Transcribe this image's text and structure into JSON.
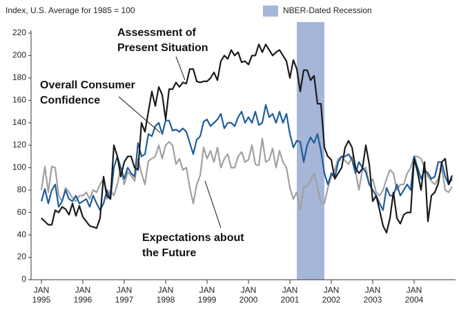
{
  "chart_data": {
    "type": "line",
    "ylabel": "Index, U.S. Average for 1985 = 100",
    "recession": {
      "label": "NBER-Dated Recession",
      "start": "2001-03",
      "end": "2001-11",
      "color": "#a6b6d9"
    },
    "x": [
      "1995-01",
      "1995-02",
      "1995-03",
      "1995-04",
      "1995-05",
      "1995-06",
      "1995-07",
      "1995-08",
      "1995-09",
      "1995-10",
      "1995-11",
      "1995-12",
      "1996-01",
      "1996-02",
      "1996-03",
      "1996-04",
      "1996-05",
      "1996-06",
      "1996-07",
      "1996-08",
      "1996-09",
      "1996-10",
      "1996-11",
      "1996-12",
      "1997-01",
      "1997-02",
      "1997-03",
      "1997-04",
      "1997-05",
      "1997-06",
      "1997-07",
      "1997-08",
      "1997-09",
      "1997-10",
      "1997-11",
      "1997-12",
      "1998-01",
      "1998-02",
      "1998-03",
      "1998-04",
      "1998-05",
      "1998-06",
      "1998-07",
      "1998-08",
      "1998-09",
      "1998-10",
      "1998-11",
      "1998-12",
      "1999-01",
      "1999-02",
      "1999-03",
      "1999-04",
      "1999-05",
      "1999-06",
      "1999-07",
      "1999-08",
      "1999-09",
      "1999-10",
      "1999-11",
      "1999-12",
      "2000-01",
      "2000-02",
      "2000-03",
      "2000-04",
      "2000-05",
      "2000-06",
      "2000-07",
      "2000-08",
      "2000-09",
      "2000-10",
      "2000-11",
      "2000-12",
      "2001-01",
      "2001-02",
      "2001-03",
      "2001-04",
      "2001-05",
      "2001-06",
      "2001-07",
      "2001-08",
      "2001-09",
      "2001-10",
      "2001-11",
      "2001-12",
      "2002-01",
      "2002-02",
      "2002-03",
      "2002-04",
      "2002-05",
      "2002-06",
      "2002-07",
      "2002-08",
      "2002-09",
      "2002-10",
      "2002-11",
      "2002-12",
      "2003-01",
      "2003-02",
      "2003-03",
      "2003-04",
      "2003-05",
      "2003-06",
      "2003-07",
      "2003-08",
      "2003-09",
      "2003-10",
      "2003-11",
      "2003-12",
      "2004-01",
      "2004-02",
      "2004-03",
      "2004-04",
      "2004-05",
      "2004-06",
      "2004-07",
      "2004-08",
      "2004-09",
      "2004-10",
      "2004-11",
      "2004-12"
    ],
    "series": [
      {
        "name": "Assessment of Present Situation",
        "color": "#1a1a1a",
        "values": [
          55,
          52,
          49,
          49,
          62,
          60,
          65,
          63,
          58,
          68,
          57,
          66,
          56,
          52,
          48,
          47,
          46,
          55,
          92,
          75,
          72,
          120,
          110,
          92,
          105,
          110,
          110,
          100,
          98,
          140,
          132,
          150,
          168,
          155,
          172,
          165,
          143,
          170,
          170,
          176,
          172,
          176,
          175,
          188,
          188,
          177,
          176,
          177,
          177,
          180,
          185,
          178,
          195,
          200,
          197,
          205,
          200,
          203,
          194,
          195,
          192,
          200,
          200,
          210,
          203,
          210,
          205,
          200,
          203,
          205,
          200,
          195,
          180,
          196,
          188,
          168,
          187,
          187,
          178,
          182,
          157,
          157,
          118,
          110,
          107,
          90,
          95,
          100,
          118,
          124,
          118,
          100,
          95,
          99,
          120,
          103,
          70,
          75,
          62,
          48,
          42,
          55,
          78,
          55,
          50,
          58,
          60,
          60,
          108,
          96,
          80,
          105,
          52,
          75,
          78,
          86,
          105,
          108,
          85,
          93
        ]
      },
      {
        "name": "Overall Consumer Confidence",
        "color": "#1f5c99",
        "values": [
          70,
          81,
          68,
          80,
          85,
          65,
          70,
          80,
          72,
          70,
          75,
          68,
          70,
          72,
          65,
          75,
          68,
          62,
          68,
          80,
          72,
          100,
          110,
          100,
          90,
          100,
          95,
          92,
          122,
          110,
          112,
          130,
          128,
          137,
          140,
          130,
          142,
          142,
          133,
          134,
          132,
          135,
          132,
          122,
          112,
          125,
          128,
          141,
          143,
          137,
          140,
          143,
          148,
          135,
          140,
          140,
          137,
          145,
          150,
          140,
          145,
          140,
          150,
          138,
          140,
          156,
          145,
          148,
          140,
          150,
          140,
          148,
          130,
          118,
          124,
          123,
          105,
          120,
          127,
          122,
          130,
          115,
          95,
          85,
          95,
          91,
          105,
          110,
          110,
          112,
          107,
          95,
          105,
          100,
          96,
          85,
          80,
          75,
          68,
          62,
          82,
          75,
          75,
          85,
          75,
          80,
          85,
          80,
          110,
          100,
          90,
          98,
          95,
          90,
          92,
          105,
          105,
          92,
          85,
          90
        ]
      },
      {
        "name": "Expectations about the Future",
        "color": "#a0a0a0",
        "values": [
          80,
          101,
          78,
          101,
          100,
          75,
          70,
          82,
          78,
          73,
          70,
          75,
          75,
          78,
          72,
          80,
          78,
          85,
          90,
          72,
          80,
          75,
          85,
          100,
          85,
          96,
          93,
          88,
          108,
          95,
          85,
          106,
          108,
          110,
          120,
          108,
          120,
          123,
          120,
          103,
          108,
          98,
          100,
          82,
          68,
          85,
          93,
          118,
          108,
          115,
          105,
          118,
          100,
          108,
          112,
          100,
          100,
          110,
          114,
          105,
          107,
          120,
          103,
          102,
          126,
          105,
          107,
          117,
          100,
          115,
          105,
          100,
          82,
          72,
          78,
          62,
          82,
          84,
          88,
          95,
          82,
          68,
          68,
          82,
          92,
          98,
          108,
          110,
          106,
          103,
          110,
          97,
          80,
          98,
          100,
          85,
          90,
          78,
          75,
          80,
          90,
          98,
          95,
          80,
          85,
          85,
          95,
          100,
          110,
          110,
          108,
          100,
          92,
          88,
          85,
          90,
          100,
          80,
          78,
          83
        ]
      }
    ],
    "ylim": [
      0,
      220
    ],
    "yticks": [
      0,
      20,
      40,
      60,
      80,
      100,
      120,
      140,
      160,
      180,
      200,
      220
    ],
    "xticks": [
      {
        "value": "1995-01",
        "label": "JAN 1995"
      },
      {
        "value": "1996-01",
        "label": "JAN 1996"
      },
      {
        "value": "1997-01",
        "label": "JAN 1997"
      },
      {
        "value": "1998-01",
        "label": "JAN 1998"
      },
      {
        "value": "1999-01",
        "label": "JAN 1999"
      },
      {
        "value": "2000-01",
        "label": "JAN 2000"
      },
      {
        "value": "2001-01",
        "label": "JAN 2001"
      },
      {
        "value": "2002-01",
        "label": "JAN 2002"
      },
      {
        "value": "2003-01",
        "label": "JAN 2003"
      },
      {
        "value": "2004-01",
        "label": "JAN 2004"
      }
    ]
  }
}
